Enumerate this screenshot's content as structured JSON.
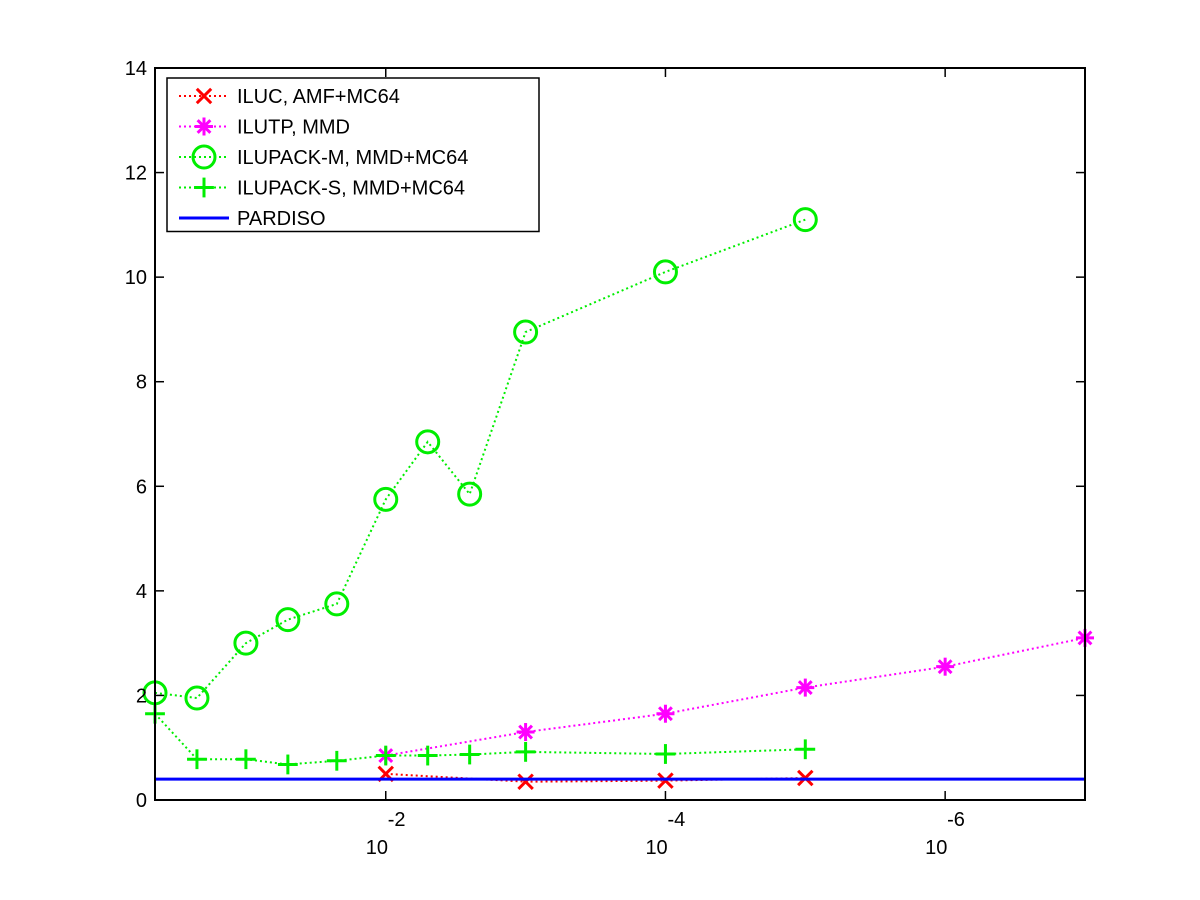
{
  "chart_data": {
    "type": "line",
    "title": "",
    "xlabel": "",
    "ylabel": "",
    "x_scale": "log",
    "x_direction": "decreasing",
    "x_axis_quantity": "threshold (10^-k)",
    "xlim": [
      0.35,
      7.0
    ],
    "ylim": [
      0,
      14
    ],
    "yticks": [
      0,
      2,
      4,
      6,
      8,
      10,
      12,
      14
    ],
    "xticks": [
      {
        "at": 2,
        "base": "10",
        "exp": "-2"
      },
      {
        "at": 4,
        "base": "10",
        "exp": "-4"
      },
      {
        "at": 6,
        "base": "10",
        "exp": "-6"
      }
    ],
    "grid": false,
    "legend_position": "top-left",
    "series": [
      {
        "name": "ILUC, AMF+MC64",
        "color": "#ff0000",
        "marker": "x",
        "line_style": "dotted",
        "x": [
          2,
          3,
          4,
          5
        ],
        "y": [
          0.5,
          0.35,
          0.37,
          0.42
        ]
      },
      {
        "name": "ILUTP, MMD",
        "color": "#ff00ff",
        "marker": "asterisk",
        "line_style": "dotted",
        "x": [
          2,
          3,
          4,
          5,
          6,
          7
        ],
        "y": [
          0.85,
          1.3,
          1.65,
          2.15,
          2.55,
          3.1
        ]
      },
      {
        "name": "ILUPACK-M, MMD+MC64",
        "color": "#00ee00",
        "marker": "circle",
        "line_style": "dotted",
        "x": [
          0.35,
          0.65,
          1.0,
          1.3,
          1.65,
          2.0,
          2.3,
          2.6,
          3.0,
          4.0,
          5.0
        ],
        "y": [
          2.05,
          1.95,
          3.0,
          3.45,
          3.75,
          5.75,
          6.85,
          5.85,
          8.95,
          10.1,
          11.1
        ]
      },
      {
        "name": "ILUPACK-S, MMD+MC64",
        "color": "#00ee00",
        "marker": "plus",
        "line_style": "dotted",
        "x": [
          0.35,
          0.65,
          1.0,
          1.3,
          1.65,
          2.0,
          2.3,
          2.6,
          3.0,
          4.0,
          5.0
        ],
        "y": [
          1.65,
          0.78,
          0.78,
          0.68,
          0.75,
          0.85,
          0.85,
          0.87,
          0.92,
          0.88,
          0.97
        ]
      },
      {
        "name": "PARDISO",
        "color": "#0000ff",
        "marker": "none",
        "line_style": "solid",
        "x": [
          0.35,
          7.0
        ],
        "y": [
          0.4,
          0.4
        ]
      }
    ]
  }
}
